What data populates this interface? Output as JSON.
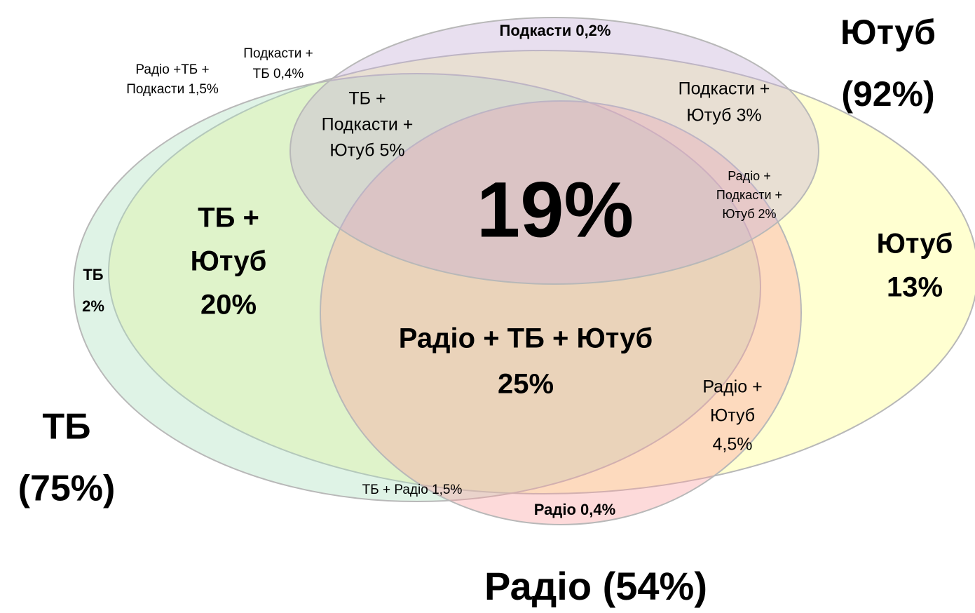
{
  "sets": [
    {
      "name": "youtube",
      "label": [
        "Ютуб",
        "(92%)"
      ]
    },
    {
      "name": "tv",
      "label": [
        "ТБ",
        "(75%)"
      ]
    },
    {
      "name": "radio",
      "label": [
        "Радіо (54%)"
      ]
    }
  ],
  "regions": [
    {
      "label": [
        "Подкасти 0,2%"
      ]
    },
    {
      "label": [
        "Радіо +ТБ +",
        "Подкасти 1,5%"
      ]
    },
    {
      "label": [
        "Подкасти +",
        "ТБ 0,4%"
      ]
    },
    {
      "label": [
        "ТБ +",
        "Подкасти +",
        "Ютуб 5%"
      ]
    },
    {
      "label": [
        "Подкасти +",
        "Ютуб 3%"
      ]
    },
    {
      "label": [
        "Радіо +",
        "Подкасти +",
        "Ютуб 2%"
      ]
    },
    {
      "label": [
        "19%"
      ]
    },
    {
      "label": [
        "ТБ  +",
        "Ютуб",
        "20%"
      ]
    },
    {
      "label": [
        "ТБ",
        "2%"
      ]
    },
    {
      "label": [
        "Ютуб",
        "13%"
      ]
    },
    {
      "label": [
        "Радіо + ТБ + Ютуб",
        "25%"
      ]
    },
    {
      "label": [
        "Радіо +",
        "Ютуб",
        "4,5%"
      ]
    },
    {
      "label": [
        "ТБ + Радіо 1,5%"
      ]
    },
    {
      "label": [
        "Радіо 0,4%"
      ]
    }
  ]
}
